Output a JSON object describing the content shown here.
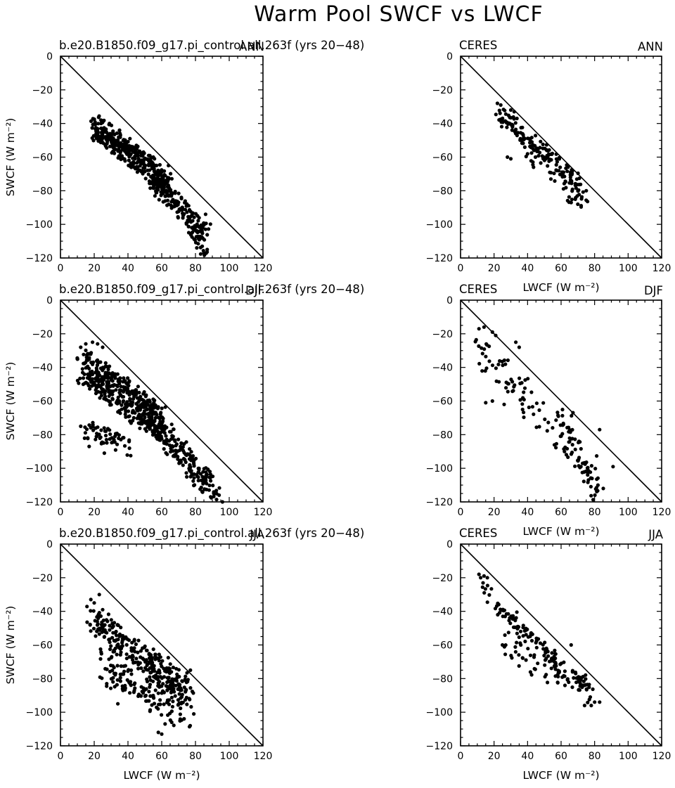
{
  "figure": {
    "title": "Warm Pool SWCF vs LWCF"
  },
  "chart_data": [
    {
      "type": "scatter",
      "title_left": "b.e20.B1850.f09_g17.pi_control.all.263f (yrs 20−48)",
      "title_right": "ANN",
      "xlabel": "",
      "ylabel": "SWCF (W m⁻²)",
      "xlim": [
        0,
        120
      ],
      "ylim": [
        -120,
        0
      ],
      "xticks": [
        "0",
        "20",
        "40",
        "60",
        "80",
        "100",
        "120"
      ],
      "yticks": [
        "0",
        "−20",
        "−40",
        "−60",
        "−80",
        "−100",
        "−120"
      ],
      "reference_line": [
        [
          0,
          0
        ],
        [
          120,
          -120
        ]
      ],
      "seed": 11,
      "clusters": [
        {
          "n": 360,
          "x": [
            20,
            64
          ],
          "y": [
            -37,
            -72
          ],
          "w": 7,
          "jx": 3
        },
        {
          "n": 160,
          "x": [
            55,
            86
          ],
          "y": [
            -70,
            -102
          ],
          "w": 6,
          "jx": 3
        },
        {
          "n": 30,
          "x": [
            75,
            86
          ],
          "y": [
            -98,
            -115
          ],
          "w": 4,
          "jx": 2
        }
      ],
      "points": [
        [
          20,
          -37.5
        ],
        [
          24,
          -38
        ],
        [
          29,
          -40
        ],
        [
          35,
          -44
        ],
        [
          45,
          -53
        ],
        [
          55,
          -60
        ],
        [
          64,
          -65
        ],
        [
          86,
          -94
        ],
        [
          84,
          -113
        ],
        [
          85,
          -117
        ]
      ]
    },
    {
      "type": "scatter",
      "title_left": "CERES",
      "title_right": "ANN",
      "xlabel": "LWCF (W m⁻²)",
      "ylabel": "",
      "xlim": [
        0,
        120
      ],
      "ylim": [
        -120,
        0
      ],
      "xticks": [
        "0",
        "20",
        "40",
        "60",
        "80",
        "100",
        "120"
      ],
      "yticks": [
        "0",
        "−20",
        "−40",
        "−60",
        "−80",
        "−100",
        "−120"
      ],
      "reference_line": [
        [
          0,
          0
        ],
        [
          120,
          -120
        ]
      ],
      "seed": 23,
      "clusters": [
        {
          "n": 150,
          "x": [
            23,
            72
          ],
          "y": [
            -31,
            -75
          ],
          "w": 5,
          "jx": 3
        },
        {
          "n": 40,
          "x": [
            40,
            75
          ],
          "y": [
            -55,
            -84
          ],
          "w": 6,
          "jx": 3
        }
      ],
      "points": [
        [
          22,
          -28
        ],
        [
          24,
          -29
        ],
        [
          30,
          -32
        ],
        [
          32,
          -33
        ],
        [
          28,
          -60
        ],
        [
          30,
          -61
        ],
        [
          66,
          -87
        ],
        [
          70,
          -88
        ],
        [
          75,
          -80
        ]
      ]
    },
    {
      "type": "scatter",
      "title_left": "b.e20.B1850.f09_g17.pi_control.all.263f (yrs 20−48)",
      "title_right": "DJF",
      "xlabel": "",
      "ylabel": "SWCF (W m⁻²)",
      "xlim": [
        0,
        120
      ],
      "ylim": [
        -120,
        0
      ],
      "xticks": [
        "0",
        "20",
        "40",
        "60",
        "80",
        "100",
        "120"
      ],
      "yticks": [
        "0",
        "−20",
        "−40",
        "−60",
        "−80",
        "−100",
        "−120"
      ],
      "reference_line": [
        [
          0,
          0
        ],
        [
          120,
          -120
        ]
      ],
      "seed": 37,
      "clusters": [
        {
          "n": 420,
          "x": [
            12,
            60
          ],
          "y": [
            -32,
            -68
          ],
          "w": 10,
          "jx": 4
        },
        {
          "n": 220,
          "x": [
            50,
            92
          ],
          "y": [
            -62,
            -112
          ],
          "w": 8,
          "jx": 4
        },
        {
          "n": 60,
          "x": [
            15,
            40
          ],
          "y": [
            -72,
            -85
          ],
          "w": 6,
          "jx": 4
        }
      ],
      "points": [
        [
          10,
          -35
        ],
        [
          12,
          -28
        ],
        [
          15,
          -26
        ],
        [
          19,
          -25
        ],
        [
          22,
          -26
        ],
        [
          25,
          -28
        ],
        [
          12,
          -75
        ],
        [
          17,
          -87
        ],
        [
          26,
          -91
        ],
        [
          89,
          -117
        ],
        [
          94,
          -116
        ],
        [
          96,
          -120
        ]
      ]
    },
    {
      "type": "scatter",
      "title_left": "CERES",
      "title_right": "DJF",
      "xlabel": "LWCF (W m⁻²)",
      "ylabel": "",
      "xlim": [
        0,
        120
      ],
      "ylim": [
        -120,
        0
      ],
      "xticks": [
        "0",
        "20",
        "40",
        "60",
        "80",
        "100",
        "120"
      ],
      "yticks": [
        "0",
        "−20",
        "−40",
        "−60",
        "−80",
        "−100",
        "−120"
      ],
      "reference_line": [
        [
          0,
          0
        ],
        [
          120,
          -120
        ]
      ],
      "seed": 53,
      "clusters": [
        {
          "n": 110,
          "x": [
            10,
            82
          ],
          "y": [
            -20,
            -100
          ],
          "w": 10,
          "jx": 4
        },
        {
          "n": 40,
          "x": [
            60,
            82
          ],
          "y": [
            -60,
            -108
          ],
          "w": 8,
          "jx": 3
        }
      ],
      "points": [
        [
          11,
          -17
        ],
        [
          14,
          -16
        ],
        [
          19,
          -19
        ],
        [
          21,
          -21
        ],
        [
          33,
          -25
        ],
        [
          35,
          -28
        ],
        [
          15,
          -61
        ],
        [
          19,
          -60
        ],
        [
          26,
          -62
        ],
        [
          37,
          -65
        ],
        [
          82,
          -110
        ],
        [
          91,
          -99
        ],
        [
          83,
          -77
        ]
      ]
    },
    {
      "type": "scatter",
      "title_left": "b.e20.B1850.f09_g17.pi_control.all.263f (yrs 20−48)",
      "title_right": "JJA",
      "xlabel": "LWCF (W m⁻²)",
      "ylabel": "SWCF (W m⁻²)",
      "xlim": [
        0,
        120
      ],
      "ylim": [
        -120,
        0
      ],
      "xticks": [
        "0",
        "20",
        "40",
        "60",
        "80",
        "100",
        "120"
      ],
      "yticks": [
        "0",
        "−20",
        "−40",
        "−60",
        "−80",
        "−100",
        "−120"
      ],
      "reference_line": [
        [
          0,
          0
        ],
        [
          120,
          -120
        ]
      ],
      "seed": 71,
      "clusters": [
        {
          "n": 260,
          "x": [
            18,
            76
          ],
          "y": [
            -40,
            -82
          ],
          "w": 8,
          "jx": 4
        },
        {
          "n": 160,
          "x": [
            25,
            75
          ],
          "y": [
            -65,
            -95
          ],
          "w": 10,
          "jx": 5
        }
      ],
      "points": [
        [
          23,
          -30
        ],
        [
          18,
          -33
        ],
        [
          20,
          -35
        ],
        [
          25,
          -39
        ],
        [
          62,
          -107
        ],
        [
          58,
          -112
        ],
        [
          60,
          -113
        ],
        [
          79,
          -101
        ],
        [
          77,
          -75
        ],
        [
          34,
          -95
        ]
      ]
    },
    {
      "type": "scatter",
      "title_left": "CERES",
      "title_right": "JJA",
      "xlabel": "LWCF (W m⁻²)",
      "ylabel": "",
      "xlim": [
        0,
        120
      ],
      "ylim": [
        -120,
        0
      ],
      "xticks": [
        "0",
        "20",
        "40",
        "60",
        "80",
        "100",
        "120"
      ],
      "yticks": [
        "0",
        "−20",
        "−40",
        "−60",
        "−80",
        "−100",
        "−120"
      ],
      "reference_line": [
        [
          0,
          0
        ],
        [
          120,
          -120
        ]
      ],
      "seed": 89,
      "clusters": [
        {
          "n": 130,
          "x": [
            12,
            78
          ],
          "y": [
            -22,
            -88
          ],
          "w": 5,
          "jx": 3
        },
        {
          "n": 60,
          "x": [
            25,
            75
          ],
          "y": [
            -55,
            -80
          ],
          "w": 8,
          "jx": 4
        }
      ],
      "points": [
        [
          11,
          -18
        ],
        [
          12,
          -20
        ],
        [
          14,
          -19
        ],
        [
          16,
          -20
        ],
        [
          78,
          -96
        ],
        [
          80,
          -94
        ],
        [
          83,
          -94
        ],
        [
          74,
          -96
        ],
        [
          66,
          -60
        ],
        [
          25,
          -60
        ]
      ]
    }
  ]
}
